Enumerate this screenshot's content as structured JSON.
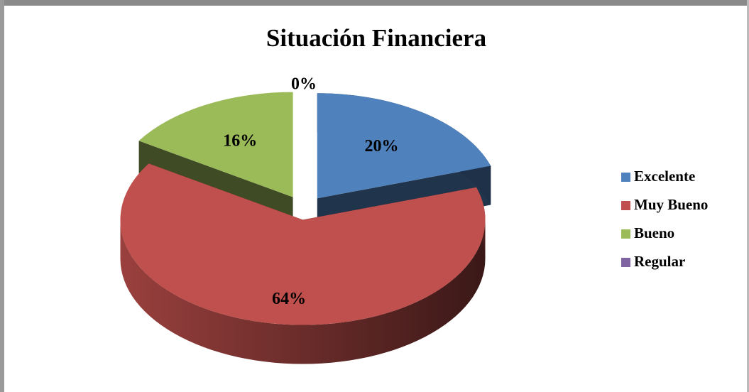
{
  "chart_data": {
    "type": "pie",
    "title": "Situación Financiera",
    "categories": [
      "Excelente",
      "Muy Bueno",
      "Bueno",
      "Regular"
    ],
    "values": [
      20,
      64,
      16,
      0
    ],
    "value_labels": [
      "20%",
      "64%",
      "16%",
      "0%"
    ],
    "colors": [
      "#4f81bd",
      "#c0504d",
      "#9bbb59",
      "#8064a2"
    ],
    "legend": "right"
  }
}
